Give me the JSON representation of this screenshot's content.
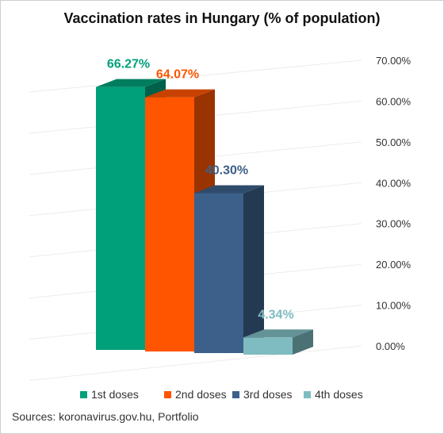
{
  "chart_data": {
    "type": "bar",
    "title": "Vaccination rates in Hungary (% of population)",
    "categories": [
      "1st doses",
      "2nd doses",
      "3rd doses",
      "4th doses"
    ],
    "values": [
      66.27,
      64.07,
      40.3,
      4.34
    ],
    "value_labels": [
      "66.27%",
      "64.07%",
      "40.30%",
      "4.34%"
    ],
    "colors": [
      "#00a07a",
      "#ff5500",
      "#3c6089",
      "#7fbcc1"
    ],
    "label_colors": [
      "#00a07a",
      "#ff5500",
      "#3c6089",
      "#7fbcc1"
    ],
    "y_ticks": [
      0,
      10,
      20,
      30,
      40,
      50,
      60,
      70
    ],
    "y_tick_labels": [
      "0.00%",
      "10.00%",
      "20.00%",
      "30.00%",
      "40.00%",
      "50.00%",
      "60.00%",
      "70.00%"
    ],
    "ylim": [
      0,
      70
    ],
    "legend_position": "bottom",
    "grid": true,
    "style": "3d"
  },
  "source": "Sources: koronavirus.gov.hu, Portfolio"
}
